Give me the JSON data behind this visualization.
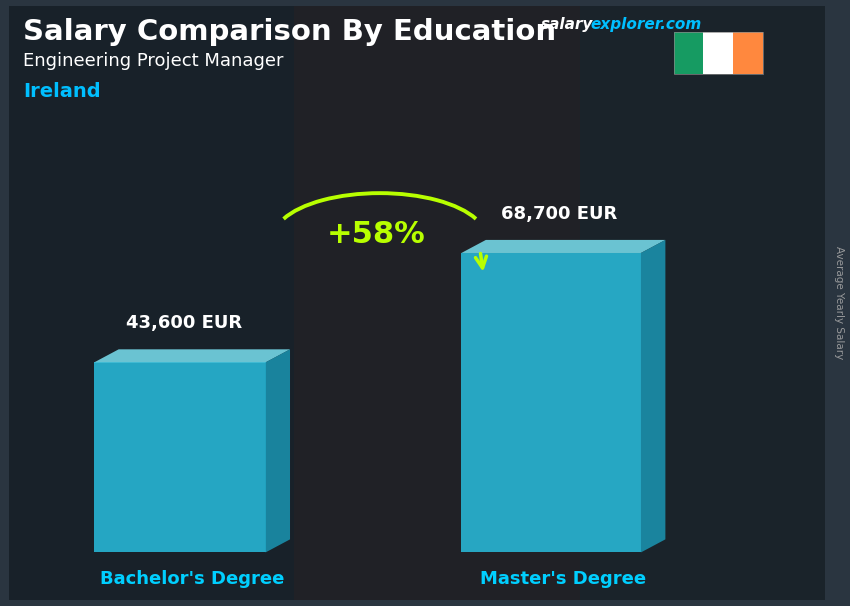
{
  "title_main": "Salary Comparison By Education",
  "subtitle": "Engineering Project Manager",
  "country": "Ireland",
  "categories": [
    "Bachelor's Degree",
    "Master's Degree"
  ],
  "values": [
    43600,
    68700
  ],
  "value_labels": [
    "43,600 EUR",
    "68,700 EUR"
  ],
  "pct_change": "+58%",
  "bar_color_front": "#29c5e6",
  "bar_color_top": "#7de8f8",
  "bar_color_side": "#1a9ab8",
  "bar_alpha": 0.82,
  "bg_dark": "#2a3540",
  "title_color": "#ffffff",
  "subtitle_color": "#ffffff",
  "country_color": "#00bfff",
  "value_color": "#ffffff",
  "pct_color": "#b8ff00",
  "arrow_color": "#b8ff00",
  "xlabel_color": "#00cfff",
  "site_salary_color": "#ffffff",
  "site_explorer_color": "#00bfff",
  "ylabel_rotated": "Average Yearly Salary",
  "flag_green": "#169B62",
  "flag_white": "#FFFFFF",
  "flag_orange": "#FF883E",
  "title_fontsize": 21,
  "subtitle_fontsize": 13,
  "country_fontsize": 14,
  "value_fontsize": 13,
  "xlabel_fontsize": 13,
  "pct_fontsize": 22
}
